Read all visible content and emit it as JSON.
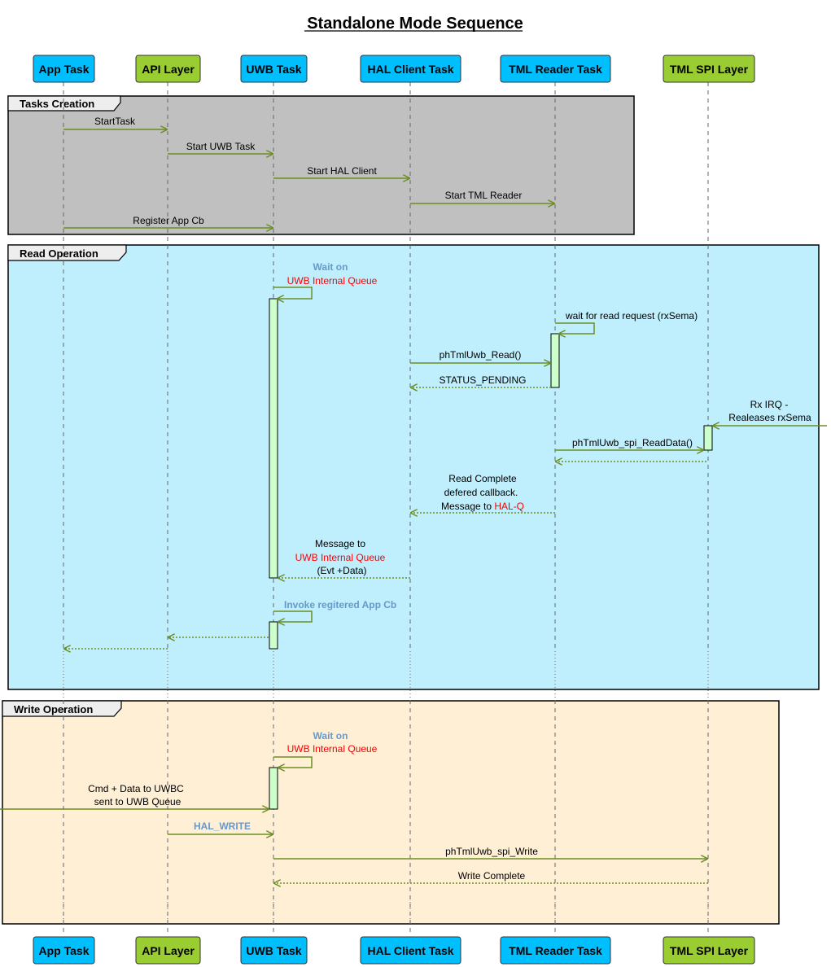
{
  "title": "Standalone Mode Sequence",
  "colors": {
    "arrow": "#6b8e23",
    "blue_participant": "#00bfff",
    "green_participant": "#9acd32",
    "activation": "#ccffcc",
    "note_blue": "#6699cc",
    "highlight_red": "#ff0000"
  },
  "participants": [
    {
      "id": "app",
      "label": "App Task",
      "color": "blue"
    },
    {
      "id": "api",
      "label": "API Layer",
      "color": "green"
    },
    {
      "id": "uwb",
      "label": "UWB Task",
      "color": "blue"
    },
    {
      "id": "hal",
      "label": "HAL Client Task",
      "color": "blue"
    },
    {
      "id": "tmlr",
      "label": "TML Reader Task",
      "color": "blue"
    },
    {
      "id": "spi",
      "label": "TML SPI Layer",
      "color": "green"
    }
  ],
  "groups": [
    {
      "label": "Tasks Creation",
      "messages": [
        {
          "from": "app",
          "to": "api",
          "label": "StartTask"
        },
        {
          "from": "api",
          "to": "uwb",
          "label": "Start UWB Task"
        },
        {
          "from": "uwb",
          "to": "hal",
          "label": "Start HAL Client"
        },
        {
          "from": "hal",
          "to": "tmlr",
          "label": "Start TML Reader"
        },
        {
          "from": "app",
          "to": "uwb",
          "label": "Register App Cb"
        }
      ]
    },
    {
      "label": "Read Operation",
      "messages": [
        {
          "self": "uwb",
          "line1": "Wait on",
          "line2": "UWB Internal Queue"
        },
        {
          "self": "tmlr",
          "line1": "wait for read request (rxSema)"
        },
        {
          "from": "hal",
          "to": "tmlr",
          "label": "phTmlUwb_Read()"
        },
        {
          "from": "tmlr",
          "to": "hal",
          "label": "STATUS_PENDING",
          "dashed": true
        },
        {
          "from": "external",
          "to": "spi",
          "line1": "Rx IRQ -",
          "line2": "Realeases rxSema"
        },
        {
          "from": "tmlr",
          "to": "spi",
          "label": "phTmlUwb_spi_ReadData()"
        },
        {
          "from": "spi",
          "to": "tmlr",
          "label": "",
          "dashed": true
        },
        {
          "from": "tmlr",
          "to": "hal",
          "line1": "Read Complete",
          "line2": "defered callback.",
          "line3a": "Message to ",
          "line3b": "HAL-Q",
          "dashed": true
        },
        {
          "from": "hal",
          "to": "uwb",
          "line1": "Message to",
          "line2": "UWB Internal Queue",
          "line3": "(Evt +Data)",
          "dashed": true
        },
        {
          "self": "uwb",
          "line1": "Invoke regitered App Cb"
        },
        {
          "from": "uwb",
          "to": "api",
          "label": "",
          "dashed": true
        },
        {
          "from": "api",
          "to": "app",
          "label": "",
          "dashed": true
        }
      ]
    },
    {
      "label": "Write Operation",
      "messages": [
        {
          "self": "uwb",
          "line1": "Wait on",
          "line2": "UWB Internal Queue"
        },
        {
          "from": "external",
          "to": "uwb",
          "line1": "Cmd + Data to UWBC",
          "line2": "sent to UWB Queue"
        },
        {
          "from": "api",
          "to": "uwb",
          "label": "HAL_WRITE"
        },
        {
          "from": "uwb",
          "to": "spi",
          "label": "phTmlUwb_spi_Write"
        },
        {
          "from": "spi",
          "to": "uwb",
          "label": "Write Complete",
          "dashed": true
        }
      ]
    }
  ]
}
